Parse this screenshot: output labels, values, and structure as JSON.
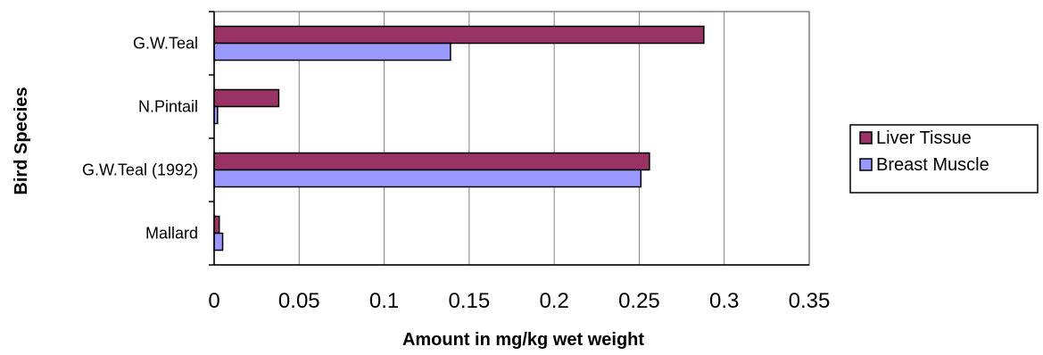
{
  "chart_data": {
    "type": "bar",
    "orientation": "horizontal",
    "title": "",
    "xlabel": "Amount in mg/kg wet weight",
    "ylabel": "Bird Species",
    "categories": [
      "G.W.Teal",
      "N.Pintail",
      "G.W.Teal (1992)",
      "Mallard"
    ],
    "series": [
      {
        "name": "Liver Tissue",
        "values": [
          0.288,
          0.038,
          0.256,
          0.003
        ],
        "color": "#993366"
      },
      {
        "name": "Breast Muscle",
        "values": [
          0.139,
          0.002,
          0.251,
          0.005
        ],
        "color": "#9999ff"
      }
    ],
    "xlim": [
      0,
      0.35
    ],
    "xticks": [
      "0",
      "0.05",
      "0.1",
      "0.15",
      "0.2",
      "0.25",
      "0.3",
      "0.35"
    ],
    "grid": true,
    "legend_position": "right"
  }
}
